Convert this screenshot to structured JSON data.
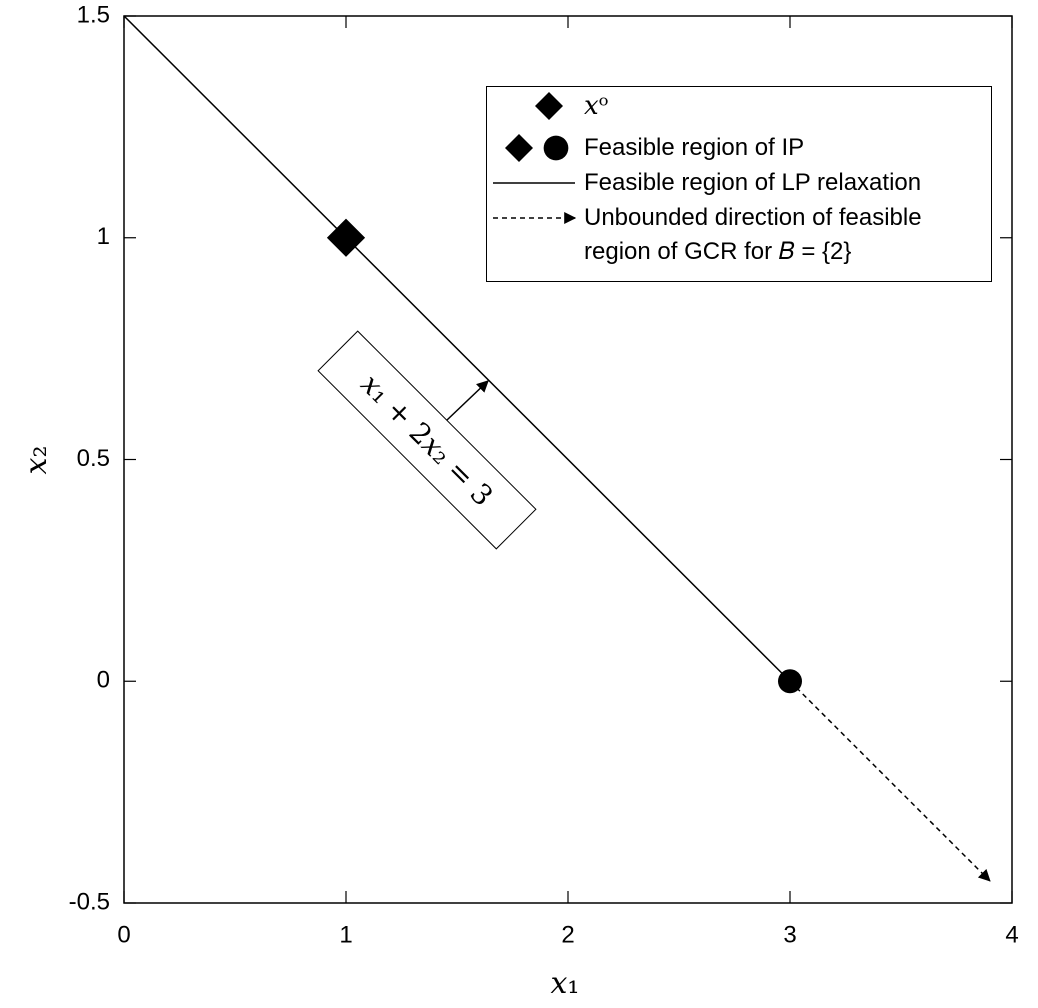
{
  "chart_data": {
    "type": "line",
    "xlabel": "𝑥₁",
    "ylabel": "𝑥₂",
    "xlim": [
      0,
      4
    ],
    "ylim": [
      -0.5,
      1.5
    ],
    "xticks": [
      0,
      1,
      2,
      3,
      4
    ],
    "yticks": [
      -0.5,
      0,
      0.5,
      1,
      1.5
    ],
    "series": [
      {
        "name": "𝑥ᵒ",
        "color": "#000000",
        "style": "marker",
        "markers": [
          "diamond"
        ],
        "x": [
          1
        ],
        "values": [
          1
        ]
      },
      {
        "name": "Feasible region of IP",
        "color": "#000000",
        "style": "marker",
        "markers": [
          "diamond",
          "circle"
        ],
        "x": [
          1,
          3
        ],
        "values": [
          1,
          0
        ]
      },
      {
        "name": "Feasible region of LP relaxation",
        "color": "#000000",
        "style": "solid",
        "x": [
          0,
          3
        ],
        "values": [
          1.5,
          0
        ]
      },
      {
        "name": "Unbounded direction of feasible region of GCR for 𝐵 = {2}",
        "color": "#000000",
        "style": "dashed-arrow",
        "x": [
          3,
          3.9
        ],
        "values": [
          0,
          -0.45
        ]
      }
    ],
    "annotation": "𝑥₁ + 2𝑥₂ = 3"
  }
}
